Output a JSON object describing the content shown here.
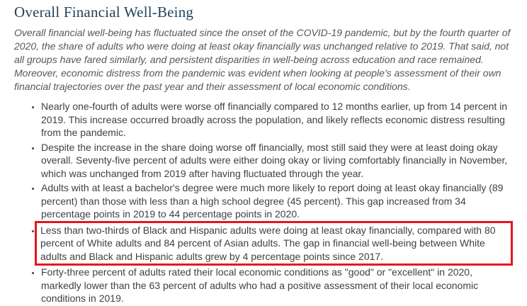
{
  "page": {
    "title": "Overall Financial Well-Being",
    "intro": "Overall financial well-being has fluctuated since the onset of the COVID-19 pandemic, but by the fourth quarter of 2020, the share of adults who were doing at least okay financially was unchanged relative to 2019. That said, not all groups have fared similarly, and persistent disparities in well-being across education and race remained. Moreover, economic distress from the pandemic was evident when looking at people's assessment of their own financial trajectories over the past year and their assessment of local economic conditions.",
    "bullets": [
      {
        "text": "Nearly one-fourth of adults were worse off financially compared to 12 months earlier, up from 14 percent in 2019. This increase occurred broadly across the population, and likely reflects economic distress resulting from the pandemic.",
        "highlighted": false
      },
      {
        "text": "Despite the increase in the share doing worse off financially, most still said they were at least doing okay overall. Seventy-five percent of adults were either doing okay or living comfortably financially in November, which was unchanged from 2019 after having fluctuated through the year.",
        "highlighted": false
      },
      {
        "text": "Adults with at least a bachelor's degree were much more likely to report doing at least okay financially (89 percent) than those with less than a high school degree (45 percent). This gap increased from 34 percentage points in 2019 to 44 percentage points in 2020.",
        "highlighted": false
      },
      {
        "text": "Less than two-thirds of Black and Hispanic adults were doing at least okay financially, compared with 80 percent of White adults and 84 percent of Asian adults. The gap in financial well-being between White adults and Black and Hispanic adults grew by 4 percentage points since 2017.",
        "highlighted": true
      },
      {
        "text": "Forty-three percent of adults rated their local economic conditions as \"good\" or \"excellent\" in 2020, markedly lower than the 63 percent of adults who had a positive assessment of their local economic conditions in 2019.",
        "highlighted": false
      }
    ],
    "colors": {
      "heading_text": "#23435c",
      "intro_text": "#56575b",
      "body_text": "#404042",
      "highlight_border": "#e9141d",
      "background": "#ffffff"
    }
  }
}
